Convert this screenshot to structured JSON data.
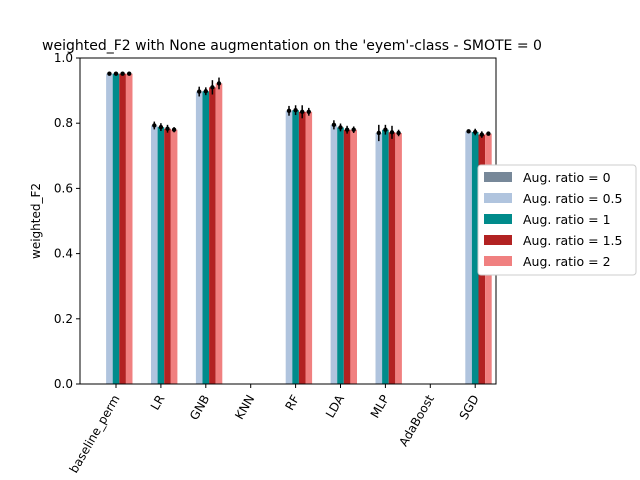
{
  "chart_data": {
    "type": "bar",
    "title": "weighted_F2 with None augmentation on the 'eyem'-class - SMOTE = 0",
    "xlabel": "",
    "ylabel": "weighted_F2",
    "ylim": [
      0.0,
      1.0
    ],
    "yticks": [
      "0.0",
      "0.2",
      "0.4",
      "0.6",
      "0.8",
      "1.0"
    ],
    "categories": [
      "baseline_perm",
      "LR",
      "GNB",
      "KNN",
      "RF",
      "LDA",
      "MLP",
      "AdaBoost",
      "SGD"
    ],
    "legend_position": "center right, outside plot",
    "grid": false,
    "series": [
      {
        "name": "Aug. ratio = 0",
        "color": "#778899",
        "values": [
          null,
          null,
          null,
          null,
          null,
          null,
          null,
          null,
          null
        ],
        "errors": [
          null,
          null,
          null,
          null,
          null,
          null,
          null,
          null,
          null
        ]
      },
      {
        "name": "Aug. ratio = 0.5",
        "color": "#b0c4de",
        "values": [
          0.952,
          0.793,
          0.897,
          null,
          0.838,
          0.795,
          0.77,
          null,
          0.775
        ],
        "errors": [
          0.004,
          0.012,
          0.015,
          null,
          0.015,
          0.014,
          0.025,
          null,
          0.004
        ]
      },
      {
        "name": "Aug. ratio = 1",
        "color": "#008b8b",
        "values": [
          0.952,
          0.788,
          0.898,
          null,
          0.84,
          0.787,
          0.78,
          null,
          0.773
        ],
        "errors": [
          0.003,
          0.012,
          0.012,
          null,
          0.015,
          0.012,
          0.015,
          null,
          0.01
        ]
      },
      {
        "name": "Aug. ratio = 1.5",
        "color": "#b22222",
        "values": [
          0.952,
          0.783,
          0.91,
          null,
          0.835,
          0.78,
          0.772,
          null,
          0.765
        ],
        "errors": [
          0.004,
          0.012,
          0.022,
          null,
          0.02,
          0.012,
          0.02,
          null,
          0.01
        ]
      },
      {
        "name": "Aug. ratio = 2",
        "color": "#f08080",
        "values": [
          0.952,
          0.78,
          0.922,
          null,
          0.835,
          0.78,
          0.77,
          null,
          0.768
        ],
        "errors": [
          0.003,
          0.008,
          0.018,
          null,
          0.012,
          0.01,
          0.01,
          null,
          0.004
        ]
      }
    ]
  }
}
